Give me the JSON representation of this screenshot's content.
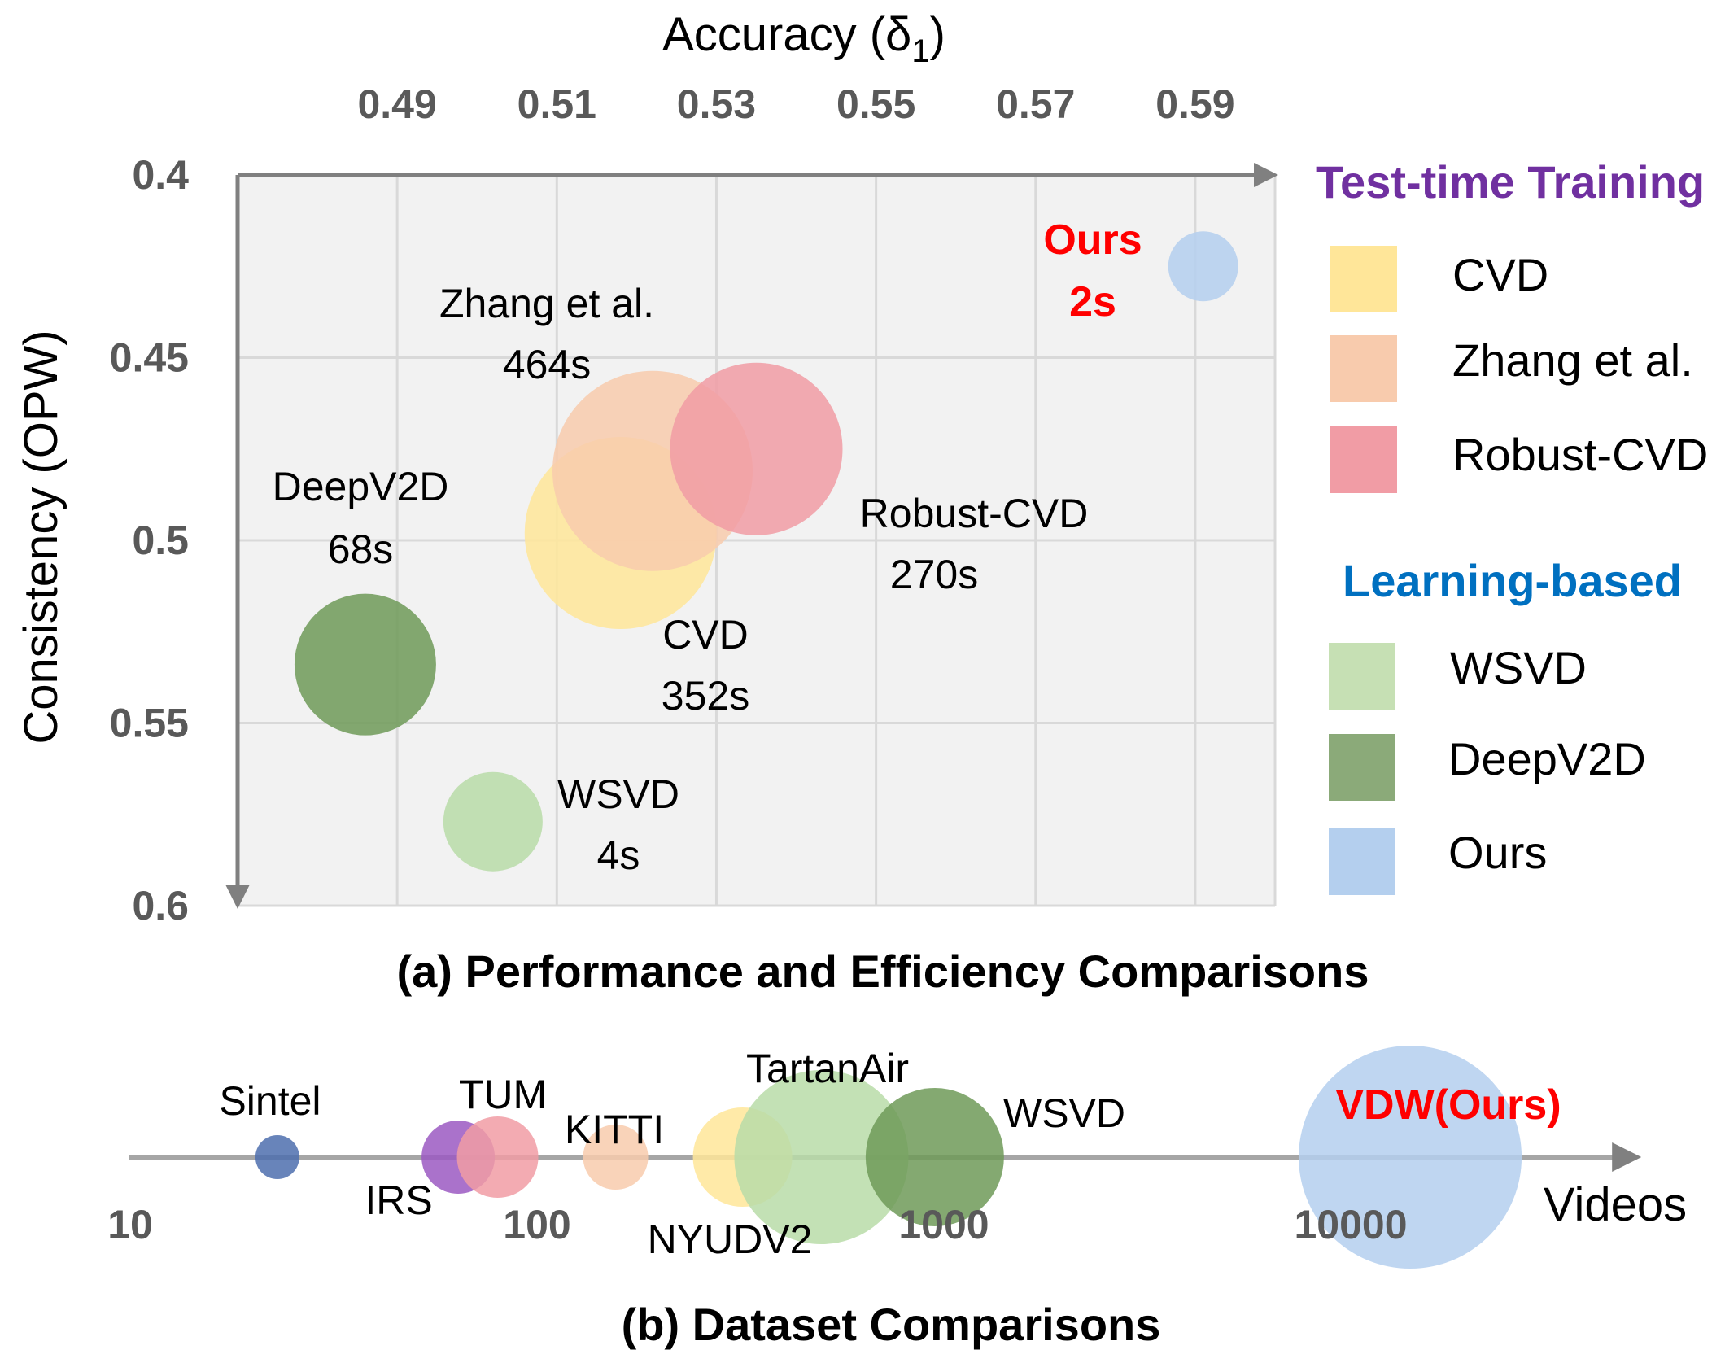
{
  "chart_data": [
    {
      "type": "scatter",
      "title": "(a) Performance and Efficiency Comparisons",
      "xlabel": "Accuracy (δ",
      "xlabel_sub": "1",
      "xlabel_close": ")",
      "ylabel": "Consistency (OPW)",
      "xlim": [
        0.47,
        0.6
      ],
      "ylim": [
        0.4,
        0.6
      ],
      "y_inverted": true,
      "x_axis_position": "top",
      "grid": true,
      "x_ticks": [
        "0.49",
        "0.51",
        "0.53",
        "0.55",
        "0.57",
        "0.59"
      ],
      "y_ticks": [
        "0.4",
        "0.45",
        "0.5",
        "0.55",
        "0.6"
      ],
      "bubble_size_represents": "runtime",
      "legend_position": "right",
      "legend_groups": [
        {
          "title": "Test-time Training",
          "color": "#7030A0",
          "items": [
            "CVD",
            "Zhang et al.",
            "Robust-CVD"
          ]
        },
        {
          "title": "Learning-based",
          "color": "#0070C0",
          "items": [
            "WSVD",
            "DeepV2D",
            "Ours"
          ]
        }
      ],
      "points": [
        {
          "name": "CVD",
          "x": 0.518,
          "y": 0.498,
          "time": "352s",
          "color": "#FFE699"
        },
        {
          "name": "Zhang et al.",
          "x": 0.522,
          "y": 0.481,
          "time": "464s",
          "color": "#F8CBAD"
        },
        {
          "name": "Robust-CVD",
          "x": 0.535,
          "y": 0.475,
          "time": "270s",
          "color": "#F19CA5"
        },
        {
          "name": "DeepV2D",
          "x": 0.486,
          "y": 0.534,
          "time": "68s",
          "color": "#6E9A58"
        },
        {
          "name": "WSVD",
          "x": 0.502,
          "y": 0.577,
          "time": "4s",
          "color": "#B8DCA8"
        },
        {
          "name": "Ours",
          "x": 0.591,
          "y": 0.425,
          "time": "2s",
          "color": "#B4CFEE"
        }
      ]
    },
    {
      "type": "scatter",
      "title": "(b) Dataset Comparisons",
      "xlabel": "Videos",
      "x_scale": "log",
      "xlim": [
        10,
        50000
      ],
      "x_ticks": [
        "10",
        "100",
        "1000",
        "10000"
      ],
      "bubble_size_represents": "dataset size",
      "points": [
        {
          "name": "Sintel",
          "videos": 23,
          "color": "#4E6EAE"
        },
        {
          "name": "IRS",
          "videos": 64,
          "color": "#9B59C2"
        },
        {
          "name": "TUM",
          "videos": 80,
          "color": "#F19CA5"
        },
        {
          "name": "KITTI",
          "videos": 156,
          "color": "#F8CBAD"
        },
        {
          "name": "NYUDV2",
          "videos": 320,
          "color": "#FFE699"
        },
        {
          "name": "TartanAir",
          "videos": 500,
          "color": "#B8DCA8"
        },
        {
          "name": "WSVD",
          "videos": 950,
          "color": "#6E9A58"
        },
        {
          "name": "VDW(Ours)",
          "videos": 14000,
          "color": "#B4CFEE",
          "highlight": "#FF0000"
        }
      ]
    }
  ]
}
